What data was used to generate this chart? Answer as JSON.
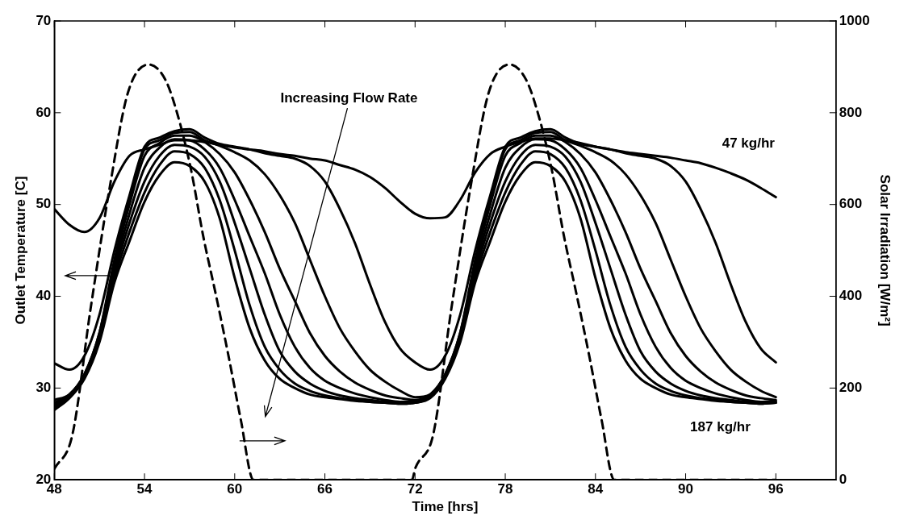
{
  "chart_data": {
    "type": "line",
    "xlabel": "Time [hrs]",
    "ylabel": "Outlet Temperature [C]",
    "y2label": "Solar Irradiation [W/m²]",
    "x": [
      48,
      49,
      50,
      51,
      52,
      53,
      54,
      55,
      56,
      57,
      58,
      59,
      60,
      61,
      62,
      63,
      64,
      65,
      66,
      67,
      68,
      69,
      70,
      71,
      72,
      73,
      74,
      75,
      76,
      77,
      78,
      79,
      80,
      81,
      82,
      83,
      84,
      85,
      86,
      87,
      88,
      89,
      90,
      91,
      92,
      93,
      94,
      95,
      96
    ],
    "xlim": [
      48,
      100
    ],
    "xticks": [
      48,
      54,
      60,
      66,
      72,
      78,
      84,
      90,
      96
    ],
    "ylim": [
      20,
      70
    ],
    "yticks": [
      20,
      30,
      40,
      50,
      60,
      70
    ],
    "y2lim": [
      0,
      1000
    ],
    "y2ticks": [
      0,
      200,
      400,
      600,
      800,
      1000
    ],
    "grid": false,
    "legend": false,
    "marker": "none",
    "series": [
      {
        "color": "#000000",
        "values": [
          49.5,
          47.8,
          47.0,
          48.5,
          52.5,
          55.3,
          56.0,
          56.5,
          57.0,
          57.0,
          56.8,
          56.5,
          56.2,
          56.0,
          55.8,
          55.5,
          55.3,
          55.0,
          54.8,
          54.3,
          53.8,
          53.0,
          51.8,
          50.3,
          49.0,
          48.5,
          48.6,
          50.5,
          53.5,
          55.5,
          56.3,
          56.8,
          57.2,
          57.2,
          57.0,
          56.7,
          56.3,
          56.0,
          55.7,
          55.5,
          55.3,
          55.1,
          54.8,
          54.5,
          54.0,
          53.4,
          52.7,
          51.8,
          50.8
        ]
      },
      {
        "color": "#000000",
        "values": [
          32.7,
          32.0,
          33.5,
          38,
          45,
          51,
          56.3,
          57.3,
          58.0,
          58.2,
          57.3,
          56.6,
          56.3,
          56.0,
          55.6,
          55.3,
          55.0,
          54.2,
          52.5,
          49.5,
          45.8,
          41.3,
          37.2,
          34.3,
          32.8,
          32.0,
          33.5,
          38,
          45,
          51,
          56.3,
          57.3,
          58.0,
          58.2,
          57.3,
          56.6,
          56.3,
          56.0,
          55.6,
          55.3,
          55.0,
          54.2,
          52.5,
          49.5,
          45.8,
          41.3,
          37.2,
          34.3,
          32.8
        ]
      },
      {
        "color": "#000000",
        "values": [
          28.7,
          29.3,
          31.5,
          36,
          44,
          50.5,
          56,
          57,
          57.8,
          57.9,
          57,
          56.4,
          55.7,
          54.8,
          53.3,
          51,
          48,
          44,
          40,
          36.5,
          34,
          32,
          30.7,
          29.7,
          29.0,
          29.3,
          31.5,
          36,
          44,
          50.5,
          56,
          57,
          57.8,
          57.9,
          57,
          56.4,
          55.7,
          54.8,
          53.3,
          51,
          48,
          44,
          40,
          36.5,
          34,
          32,
          30.7,
          29.7,
          29.0
        ]
      },
      {
        "color": "#000000",
        "values": [
          28.4,
          29.3,
          31.5,
          36,
          43.5,
          50,
          55.3,
          56.7,
          57.5,
          57.5,
          56.8,
          55.5,
          53.5,
          50.5,
          47,
          43,
          39.5,
          36,
          33.5,
          31.8,
          30.6,
          29.8,
          29.2,
          28.9,
          28.7,
          29.3,
          31.5,
          36,
          43.5,
          50,
          55.3,
          56.7,
          57.5,
          57.5,
          56.8,
          55.5,
          53.5,
          50.5,
          47,
          43,
          39.5,
          36,
          33.5,
          31.8,
          30.6,
          29.8,
          29.2,
          28.9,
          28.7
        ]
      },
      {
        "color": "#000000",
        "values": [
          28.2,
          29.2,
          31.4,
          35.8,
          43,
          49,
          54,
          56.2,
          57.1,
          57.0,
          56,
          54,
          50.5,
          46.5,
          42.5,
          38,
          34.5,
          32.2,
          30.8,
          30,
          29.4,
          29,
          28.7,
          28.5,
          28.6,
          29.2,
          31.4,
          35.8,
          43,
          49,
          54,
          56.2,
          57.1,
          57.0,
          56,
          54,
          50.5,
          46.5,
          42.5,
          38,
          34.5,
          32.2,
          30.8,
          30,
          29.4,
          29,
          28.7,
          28.5,
          28.6
        ]
      },
      {
        "color": "#000000",
        "values": [
          28.0,
          29.1,
          31.3,
          35.6,
          42.5,
          48,
          52.5,
          55.3,
          56.5,
          56.3,
          55.2,
          52.5,
          48,
          43,
          38,
          34,
          31.8,
          30.5,
          29.7,
          29.2,
          28.9,
          28.7,
          28.5,
          28.4,
          28.5,
          29.1,
          31.3,
          35.6,
          42.5,
          48,
          52.5,
          55.3,
          56.5,
          56.3,
          55.2,
          52.5,
          48,
          43,
          38,
          34,
          31.8,
          30.5,
          29.7,
          29.2,
          28.9,
          28.7,
          28.5,
          28.4,
          28.5
        ]
      },
      {
        "color": "#000000",
        "values": [
          27.8,
          29,
          31.2,
          35.4,
          42,
          47,
          51.3,
          54.3,
          55.8,
          55.5,
          54,
          50.5,
          45,
          39,
          34.5,
          32,
          30.5,
          29.7,
          29.2,
          28.9,
          28.7,
          28.5,
          28.4,
          28.3,
          28.4,
          29,
          31.2,
          35.4,
          42,
          47,
          51.3,
          54.3,
          55.8,
          55.5,
          54,
          50.5,
          45,
          39,
          34.5,
          32,
          30.5,
          29.7,
          29.2,
          28.9,
          28.7,
          28.5,
          28.4,
          28.3,
          28.4
        ]
      },
      {
        "color": "#000000",
        "values": [
          27.6,
          28.9,
          31,
          35,
          41.5,
          46,
          50.3,
          53.2,
          54.6,
          54.2,
          52.5,
          48.5,
          42,
          36.5,
          33,
          31,
          30,
          29.3,
          29,
          28.8,
          28.6,
          28.5,
          28.4,
          28.3,
          28.4,
          28.9,
          31,
          35,
          41.5,
          46,
          50.3,
          53.2,
          54.6,
          54.2,
          52.5,
          48.5,
          42,
          36.5,
          33,
          31,
          30,
          29.3,
          29,
          28.8,
          28.6,
          28.5,
          28.4,
          28.3,
          28.4
        ]
      },
      {
        "color": "#000000",
        "axis": "y2",
        "line_style": "dashed",
        "x": [
          48,
          49.2,
          50.4,
          51.7,
          52.9,
          54.3,
          55.4,
          56.25,
          57.1,
          57.9,
          58.75,
          59.6,
          60.4,
          61.25,
          71.8,
          72,
          73.2,
          74.4,
          75.7,
          76.9,
          78.3,
          79.4,
          80.25,
          81.1,
          81.9,
          82.75,
          83.6,
          84.4,
          85.25,
          96
        ],
        "values": [
          24,
          98,
          370,
          640,
          844,
          905,
          871,
          790,
          675,
          532,
          403,
          268,
          132,
          0,
          0,
          24,
          98,
          370,
          640,
          844,
          905,
          871,
          790,
          675,
          532,
          403,
          268,
          132,
          0,
          0
        ]
      }
    ],
    "annotations": [
      "Increasing Flow Rate",
      "47 kg/hr",
      "187 kg/hr"
    ]
  }
}
